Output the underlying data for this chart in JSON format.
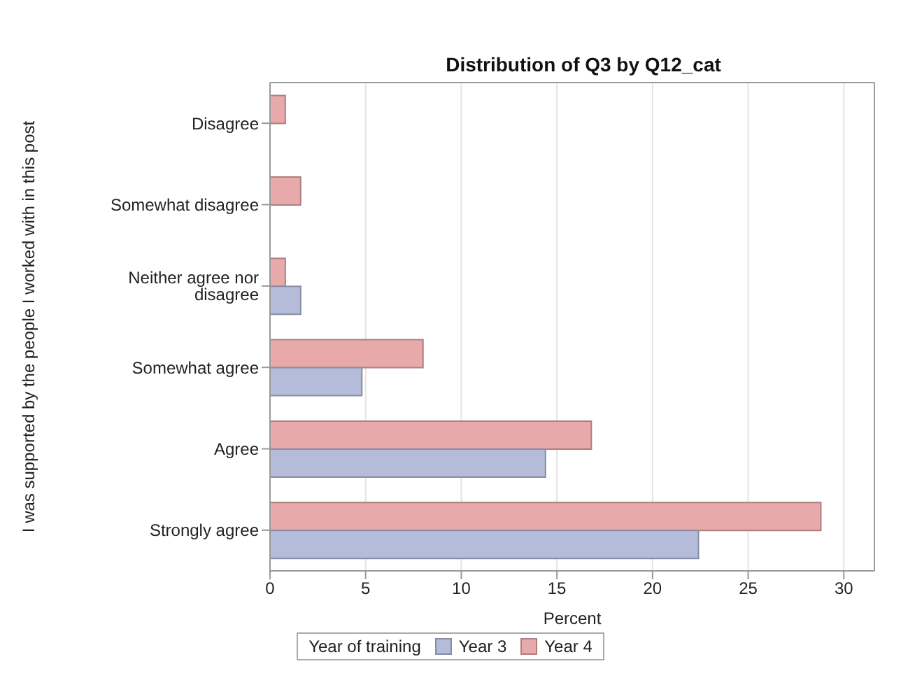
{
  "chart_data": {
    "type": "bar",
    "orientation": "horizontal",
    "title": "Distribution of Q3 by Q12_cat",
    "xlabel": "Percent",
    "ylabel": "I was supported by the people I worked with in this post",
    "legend_title": "Year of training",
    "categories": [
      "Disagree",
      "Somewhat disagree",
      "Neither agree nor disagree",
      "Somewhat agree",
      "Agree",
      "Strongly agree"
    ],
    "series": [
      {
        "name": "Year 3",
        "color": "#b4bcda",
        "values": [
          0,
          0,
          1.6,
          4.8,
          14.4,
          22.4
        ]
      },
      {
        "name": "Year 4",
        "color": "#e8a9ab",
        "values": [
          0.8,
          1.6,
          0.8,
          8.0,
          16.8,
          28.8
        ]
      }
    ],
    "xlim": [
      0,
      31.6
    ],
    "xticks": [
      0,
      5,
      10,
      15,
      20,
      25,
      30
    ],
    "grid": "x",
    "legend": "bottom"
  }
}
